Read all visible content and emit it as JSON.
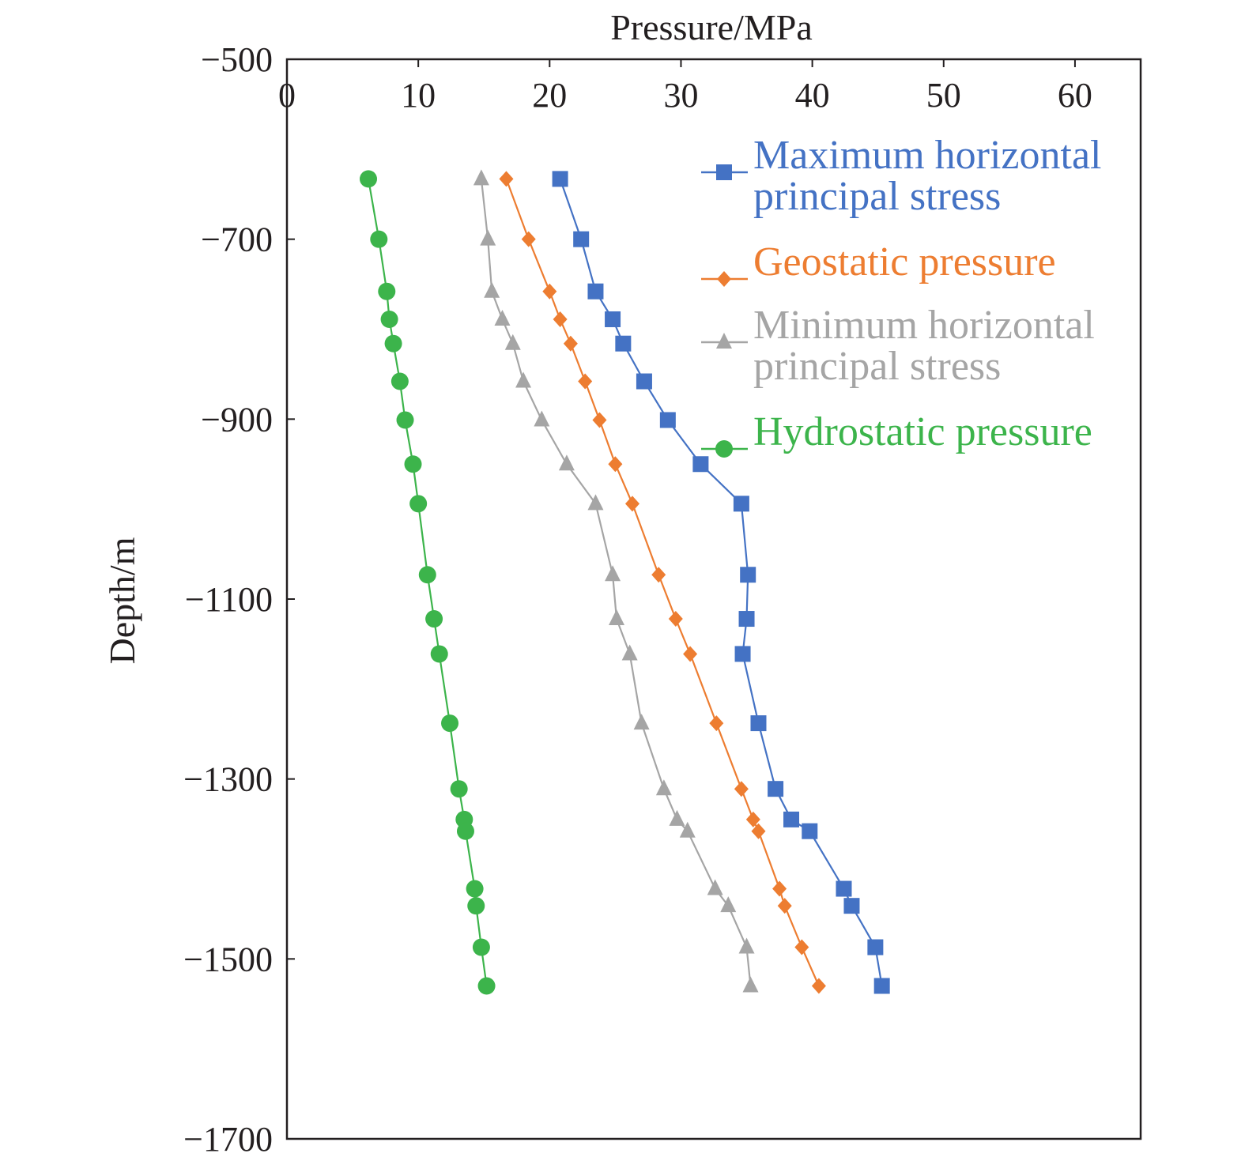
{
  "chart_data": {
    "type": "line",
    "title": "",
    "xlabel": "Pressure/MPa",
    "ylabel": "Depth/m",
    "xlim": [
      0,
      65
    ],
    "ylim": [
      -1700,
      -500
    ],
    "xticks": [
      "0",
      "10",
      "20",
      "30",
      "40",
      "50",
      "60"
    ],
    "yticks": [
      "−500",
      "−700",
      "−900",
      "−1100",
      "−1300",
      "−1500",
      "−1700"
    ],
    "x_axis_position": "top",
    "grid": false,
    "legend_position": "top-right",
    "legend": [
      {
        "text": "Maximum horizontal",
        "text2": "principal stress",
        "series": "max_h",
        "color": "#4472c4",
        "marker": "square"
      },
      {
        "text": "Geostatic pressure",
        "text2": "",
        "series": "geo",
        "color": "#ed7d31",
        "marker": "diamond"
      },
      {
        "text": "Minimum horizontal",
        "text2": "principal stress",
        "series": "min_h",
        "color": "#a5a5a5",
        "marker": "triangle"
      },
      {
        "text": "Hydrostatic pressure",
        "text2": "",
        "series": "hydro",
        "color": "#3cb44b",
        "marker": "circle"
      }
    ],
    "series": [
      {
        "id": "max_h",
        "color": "#4472c4",
        "marker": "square",
        "points": [
          [
            20.8,
            -633
          ],
          [
            22.4,
            -700
          ],
          [
            23.5,
            -758
          ],
          [
            24.8,
            -789
          ],
          [
            25.6,
            -816
          ],
          [
            27.2,
            -858
          ],
          [
            29.0,
            -901
          ],
          [
            31.5,
            -950
          ],
          [
            34.6,
            -994
          ],
          [
            35.1,
            -1073
          ],
          [
            35.0,
            -1122
          ],
          [
            34.7,
            -1161
          ],
          [
            35.9,
            -1238
          ],
          [
            37.2,
            -1311
          ],
          [
            38.4,
            -1345
          ],
          [
            39.8,
            -1358
          ],
          [
            42.4,
            -1422
          ],
          [
            43.0,
            -1441
          ],
          [
            44.8,
            -1487
          ],
          [
            45.3,
            -1530
          ]
        ]
      },
      {
        "id": "geo",
        "color": "#ed7d31",
        "marker": "diamond",
        "points": [
          [
            16.7,
            -633
          ],
          [
            18.4,
            -700
          ],
          [
            20.0,
            -758
          ],
          [
            20.8,
            -789
          ],
          [
            21.6,
            -816
          ],
          [
            22.7,
            -858
          ],
          [
            23.8,
            -901
          ],
          [
            25.0,
            -950
          ],
          [
            26.3,
            -994
          ],
          [
            28.3,
            -1073
          ],
          [
            29.6,
            -1122
          ],
          [
            30.7,
            -1161
          ],
          [
            32.7,
            -1238
          ],
          [
            34.6,
            -1311
          ],
          [
            35.5,
            -1345
          ],
          [
            35.9,
            -1358
          ],
          [
            37.5,
            -1422
          ],
          [
            37.9,
            -1441
          ],
          [
            39.2,
            -1487
          ],
          [
            40.5,
            -1530
          ]
        ]
      },
      {
        "id": "min_h",
        "color": "#a5a5a5",
        "marker": "triangle",
        "points": [
          [
            14.8,
            -633
          ],
          [
            15.3,
            -700
          ],
          [
            15.6,
            -758
          ],
          [
            16.4,
            -789
          ],
          [
            17.2,
            -816
          ],
          [
            18.0,
            -858
          ],
          [
            19.4,
            -901
          ],
          [
            21.3,
            -950
          ],
          [
            23.5,
            -994
          ],
          [
            24.8,
            -1073
          ],
          [
            25.1,
            -1122
          ],
          [
            26.1,
            -1161
          ],
          [
            27.0,
            -1238
          ],
          [
            28.7,
            -1311
          ],
          [
            29.7,
            -1345
          ],
          [
            30.5,
            -1358
          ],
          [
            32.6,
            -1422
          ],
          [
            33.6,
            -1441
          ],
          [
            35.0,
            -1487
          ],
          [
            35.3,
            -1530
          ]
        ]
      },
      {
        "id": "hydro",
        "color": "#3cb44b",
        "marker": "circle",
        "points": [
          [
            6.2,
            -633
          ],
          [
            7.0,
            -700
          ],
          [
            7.6,
            -758
          ],
          [
            7.8,
            -789
          ],
          [
            8.1,
            -816
          ],
          [
            8.6,
            -858
          ],
          [
            9.0,
            -901
          ],
          [
            9.6,
            -950
          ],
          [
            10.0,
            -994
          ],
          [
            10.7,
            -1073
          ],
          [
            11.2,
            -1122
          ],
          [
            11.6,
            -1161
          ],
          [
            12.4,
            -1238
          ],
          [
            13.1,
            -1311
          ],
          [
            13.5,
            -1345
          ],
          [
            13.6,
            -1358
          ],
          [
            14.3,
            -1422
          ],
          [
            14.4,
            -1441
          ],
          [
            14.8,
            -1487
          ],
          [
            15.2,
            -1530
          ]
        ]
      }
    ]
  }
}
